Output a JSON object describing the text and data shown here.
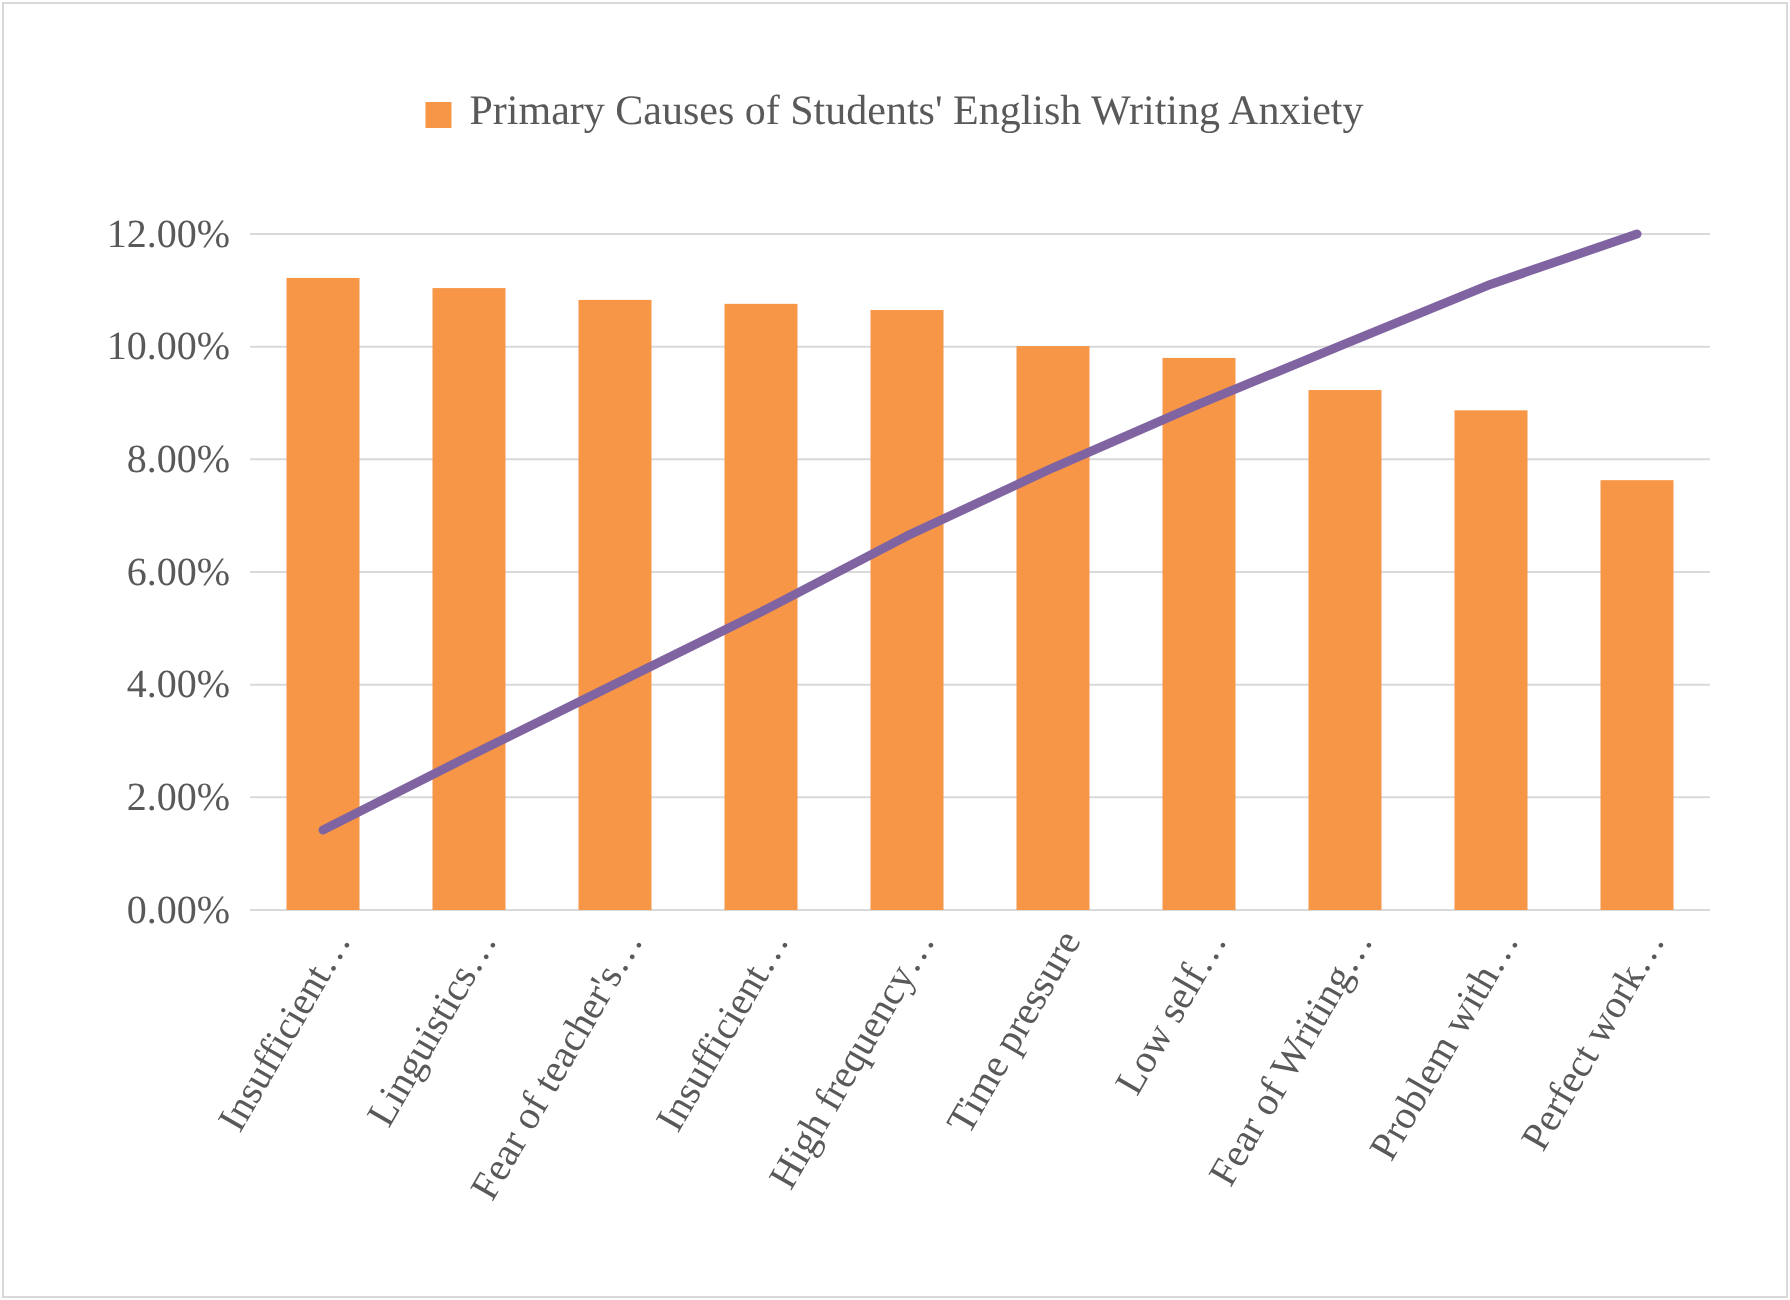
{
  "chart_data": {
    "type": "bar",
    "categories": [
      "Insufficient…",
      "Linguistics…",
      "Fear of teacher's…",
      "Insufficient…",
      "High frequency…",
      "Time pressure",
      "Low self…",
      "Fear of Writing…",
      "Problem with…",
      "Perfect work…"
    ],
    "series": [
      {
        "name": "Primary Causes of Students' English Writing Anxiety",
        "color": "#f79646",
        "values": [
          11.22,
          11.04,
          10.83,
          10.76,
          10.65,
          10.01,
          9.8,
          9.23,
          8.87,
          7.63
        ]
      },
      {
        "type": "line",
        "color": "#8064a2",
        "values": [
          1.42,
          2.73,
          4.01,
          5.29,
          6.64,
          7.85,
          8.98,
          10.05,
          11.11,
          12.0
        ]
      }
    ],
    "ylim": [
      0,
      12
    ],
    "yticks": [
      {
        "value": 0,
        "label": "0.00%"
      },
      {
        "value": 2,
        "label": "2.00%"
      },
      {
        "value": 4,
        "label": "4.00%"
      },
      {
        "value": 6,
        "label": "6.00%"
      },
      {
        "value": 8,
        "label": "8.00%"
      },
      {
        "value": 10,
        "label": "10.00%"
      },
      {
        "value": 12,
        "label": "12.00%"
      }
    ],
    "grid": "y",
    "legend": "top"
  }
}
